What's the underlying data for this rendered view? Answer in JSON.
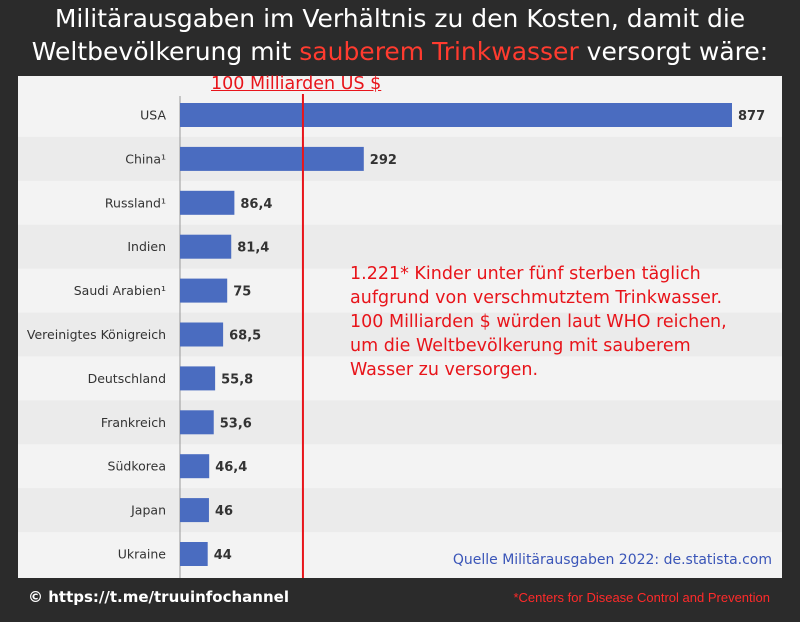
{
  "title": {
    "line1": "Militärausgaben im Verhältnis zu den Kosten, damit die",
    "line2_before": "Weltbevölkerung mit ",
    "line2_highlight": "sauberem Trinkwasser",
    "line2_after": " versorgt wäre:"
  },
  "reference_line": {
    "label": "100 Milliarden US $",
    "value": 100,
    "color": "#e8141a"
  },
  "annotation": {
    "lines": [
      "1.221* Kinder unter fünf sterben täglich",
      "aufgrund von verschmutztem Trinkwasser.",
      "100 Milliarden $ würden laut WHO reichen,",
      "um die Weltbevölkerung mit sauberem",
      "Wasser zu versorgen."
    ]
  },
  "source": "Quelle Militärausgaben 2022: de.statista.com",
  "footer": {
    "channel": "© https://t.me/truuinfochannel",
    "note": "*Centers for Disease Control and Prevention"
  },
  "colors": {
    "bar": "#4a6cc0",
    "highlight": "#ff3b2f",
    "background": "#2b2b2b",
    "panel": "#f3f3f3"
  },
  "chart_data": {
    "type": "bar",
    "orientation": "horizontal",
    "categories": [
      "USA",
      "China¹",
      "Russland¹",
      "Indien",
      "Saudi Arabien¹",
      "Vereinigtes Königreich",
      "Deutschland",
      "Frankreich",
      "Südkorea",
      "Japan",
      "Ukraine"
    ],
    "values": [
      877,
      292,
      86.4,
      81.4,
      75,
      68.5,
      55.8,
      53.6,
      46.4,
      46,
      44
    ],
    "value_labels": [
      "877",
      "292",
      "86,4",
      "81,4",
      "75",
      "68,5",
      "55,8",
      "53,6",
      "46,4",
      "46",
      "44"
    ],
    "xlim": [
      0,
      877
    ],
    "grid": false
  }
}
